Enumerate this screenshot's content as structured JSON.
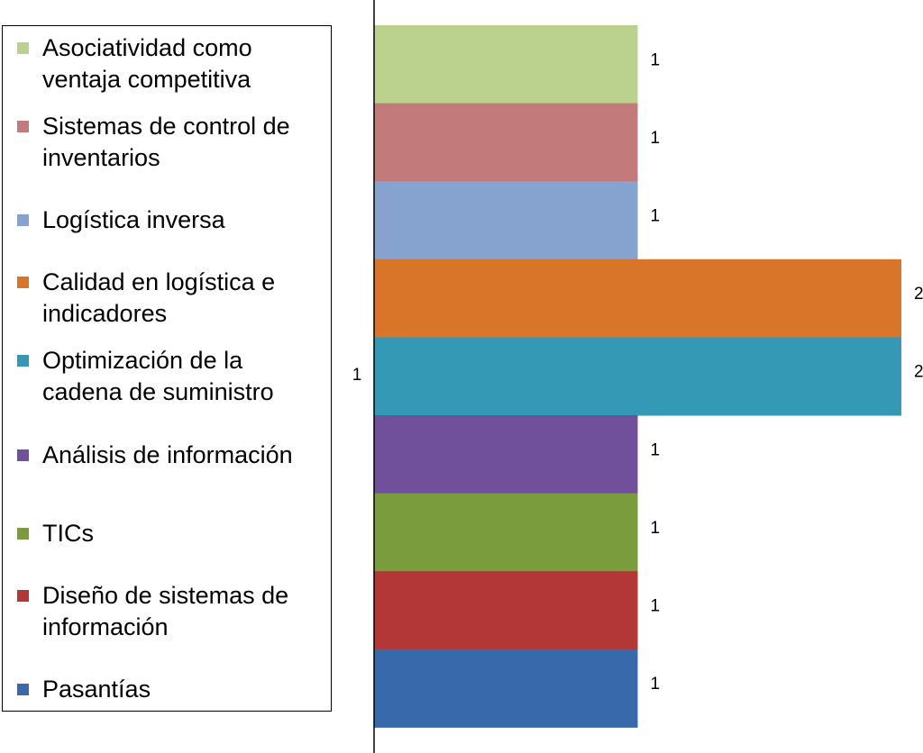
{
  "chart_data": {
    "type": "bar",
    "orientation": "horizontal",
    "categories": [
      "Asociatividad como ventaja competitiva",
      "Sistemas de control de inventarios",
      "Logística inversa",
      "Calidad en logística e indicadores",
      "Optimización de la cadena de suministro",
      "Análisis de información",
      "TICs",
      "Diseño de sistemas de información",
      "Pasantías"
    ],
    "values": [
      1,
      1,
      1,
      2,
      2,
      1,
      1,
      1,
      1
    ],
    "value_labels": [
      "1",
      "1",
      "1",
      "2",
      "2",
      "1",
      "1",
      "1",
      "1"
    ],
    "colors": [
      "#BBD28F",
      "#C27B7A",
      "#86A2CF",
      "#D97528",
      "#3399B4",
      "#70509A",
      "#7A9C3D",
      "#B23736",
      "#3869AB"
    ],
    "axis_category_label": "1",
    "xlim": [
      0,
      2
    ],
    "grid": false,
    "legend": "left"
  }
}
